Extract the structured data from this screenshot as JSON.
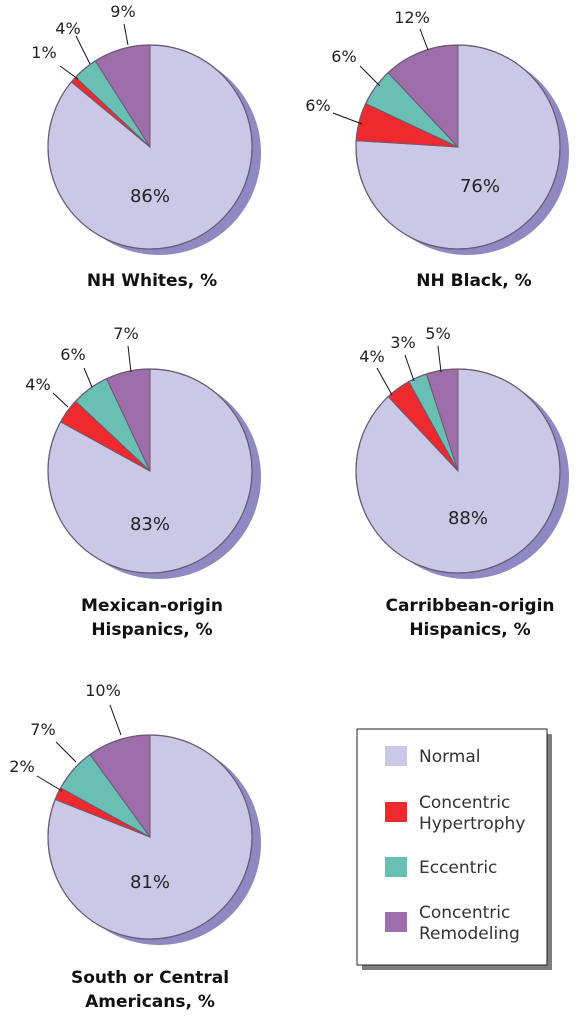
{
  "chart_data": [
    {
      "type": "pie",
      "title": [
        "NH Whites, %"
      ],
      "slices": [
        {
          "category": "Normal",
          "value": 86,
          "label": "86%"
        },
        {
          "category": "Concentric Hypertrophy",
          "value": 1,
          "label": "1%"
        },
        {
          "category": "Eccentric",
          "value": 4,
          "label": "4%"
        },
        {
          "category": "Concentric Remodeling",
          "value": 9,
          "label": "9%"
        }
      ]
    },
    {
      "type": "pie",
      "title": [
        "NH Black, %"
      ],
      "slices": [
        {
          "category": "Normal",
          "value": 76,
          "label": "76%"
        },
        {
          "category": "Concentric Hypertrophy",
          "value": 6,
          "label": "6%"
        },
        {
          "category": "Eccentric",
          "value": 6,
          "label": "6%"
        },
        {
          "category": "Concentric Remodeling",
          "value": 12,
          "label": "12%"
        }
      ]
    },
    {
      "type": "pie",
      "title": [
        "Mexican-origin",
        "Hispanics, %"
      ],
      "slices": [
        {
          "category": "Normal",
          "value": 83,
          "label": "83%"
        },
        {
          "category": "Concentric Hypertrophy",
          "value": 4,
          "label": "4%"
        },
        {
          "category": "Eccentric",
          "value": 6,
          "label": "6%"
        },
        {
          "category": "Concentric Remodeling",
          "value": 7,
          "label": "7%"
        }
      ]
    },
    {
      "type": "pie",
      "title": [
        "Carribbean-origin",
        "Hispanics, %"
      ],
      "slices": [
        {
          "category": "Normal",
          "value": 88,
          "label": "88%"
        },
        {
          "category": "Concentric Hypertrophy",
          "value": 4,
          "label": "4%"
        },
        {
          "category": "Eccentric",
          "value": 3,
          "label": "3%"
        },
        {
          "category": "Concentric Remodeling",
          "value": 5,
          "label": "5%"
        }
      ]
    },
    {
      "type": "pie",
      "title": [
        "South or Central",
        "Americans, %"
      ],
      "slices": [
        {
          "category": "Normal",
          "value": 81,
          "label": "81%"
        },
        {
          "category": "Concentric Hypertrophy",
          "value": 2,
          "label": "2%"
        },
        {
          "category": "Eccentric",
          "value": 7,
          "label": "7%"
        },
        {
          "category": "Concentric Remodeling",
          "value": 10,
          "label": "10%"
        }
      ]
    }
  ],
  "legend": {
    "placement": "bottom-right",
    "items": [
      {
        "name": "Normal",
        "lines": [
          "Normal"
        ],
        "color": "#cac8e6"
      },
      {
        "name": "Concentric Hypertrophy",
        "lines": [
          "Concentric",
          "Hypertrophy"
        ],
        "color": "#ee2a2f"
      },
      {
        "name": "Eccentric",
        "lines": [
          "Eccentric"
        ],
        "color": "#69bfb3"
      },
      {
        "name": "Concentric Remodeling",
        "lines": [
          "Concentric",
          "Remodeling"
        ],
        "color": "#9d6ea9"
      }
    ]
  },
  "colors": {
    "shadow": "#8f89c3",
    "outline": "#6b5a72"
  }
}
